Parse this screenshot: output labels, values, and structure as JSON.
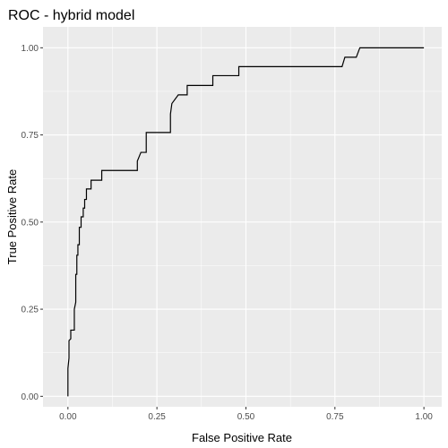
{
  "chart_data": {
    "type": "line",
    "title": "ROC - hybrid model",
    "xlabel": "False Positive Rate",
    "ylabel": "True Positive Rate",
    "xlim": [
      -0.07,
      1.05
    ],
    "ylim": [
      -0.03,
      1.06
    ],
    "x_ticks": [
      0,
      0.25,
      0.5,
      0.75,
      1
    ],
    "y_ticks": [
      0,
      0.25,
      0.5,
      0.75,
      1
    ],
    "x_tick_labels": [
      "0.00",
      "0.25",
      "0.50",
      "0.75",
      "1.00"
    ],
    "y_tick_labels": [
      "0.00",
      "0.25",
      "0.50",
      "0.75",
      "1.00"
    ],
    "grid": true,
    "panel_color": "#ebebeb",
    "grid_color": "#ffffff",
    "line_color": "#000000",
    "series": [
      {
        "x": [
          0.0,
          0.0,
          0.003,
          0.003,
          0.008,
          0.008,
          0.018,
          0.018,
          0.022,
          0.022,
          0.025,
          0.025,
          0.028,
          0.028,
          0.032,
          0.032,
          0.037,
          0.037,
          0.043,
          0.043,
          0.047,
          0.047,
          0.052,
          0.052,
          0.06,
          0.06,
          0.065,
          0.065,
          0.072,
          0.072,
          0.082,
          0.082,
          0.095,
          0.095,
          0.12,
          0.12,
          0.195,
          0.195,
          0.205,
          0.205,
          0.22,
          0.22,
          0.288,
          0.288,
          0.292,
          0.292,
          0.31,
          0.31,
          0.335,
          0.335,
          0.355,
          0.355,
          0.407,
          0.407,
          0.48,
          0.48,
          0.77,
          0.778,
          0.81,
          0.81,
          0.82,
          1.0
        ],
        "y": [
          0.0,
          0.08,
          0.11,
          0.16,
          0.165,
          0.19,
          0.19,
          0.25,
          0.27,
          0.35,
          0.35,
          0.405,
          0.405,
          0.435,
          0.435,
          0.485,
          0.485,
          0.515,
          0.515,
          0.54,
          0.54,
          0.565,
          0.565,
          0.595,
          0.595,
          0.595,
          0.595,
          0.62,
          0.62,
          0.62,
          0.62,
          0.62,
          0.62,
          0.648,
          0.648,
          0.648,
          0.648,
          0.675,
          0.7,
          0.7,
          0.7,
          0.757,
          0.757,
          0.81,
          0.84,
          0.84,
          0.865,
          0.865,
          0.865,
          0.892,
          0.892,
          0.892,
          0.892,
          0.92,
          0.92,
          0.946,
          0.946,
          0.973,
          0.973,
          0.973,
          1.0,
          1.0
        ]
      }
    ]
  }
}
